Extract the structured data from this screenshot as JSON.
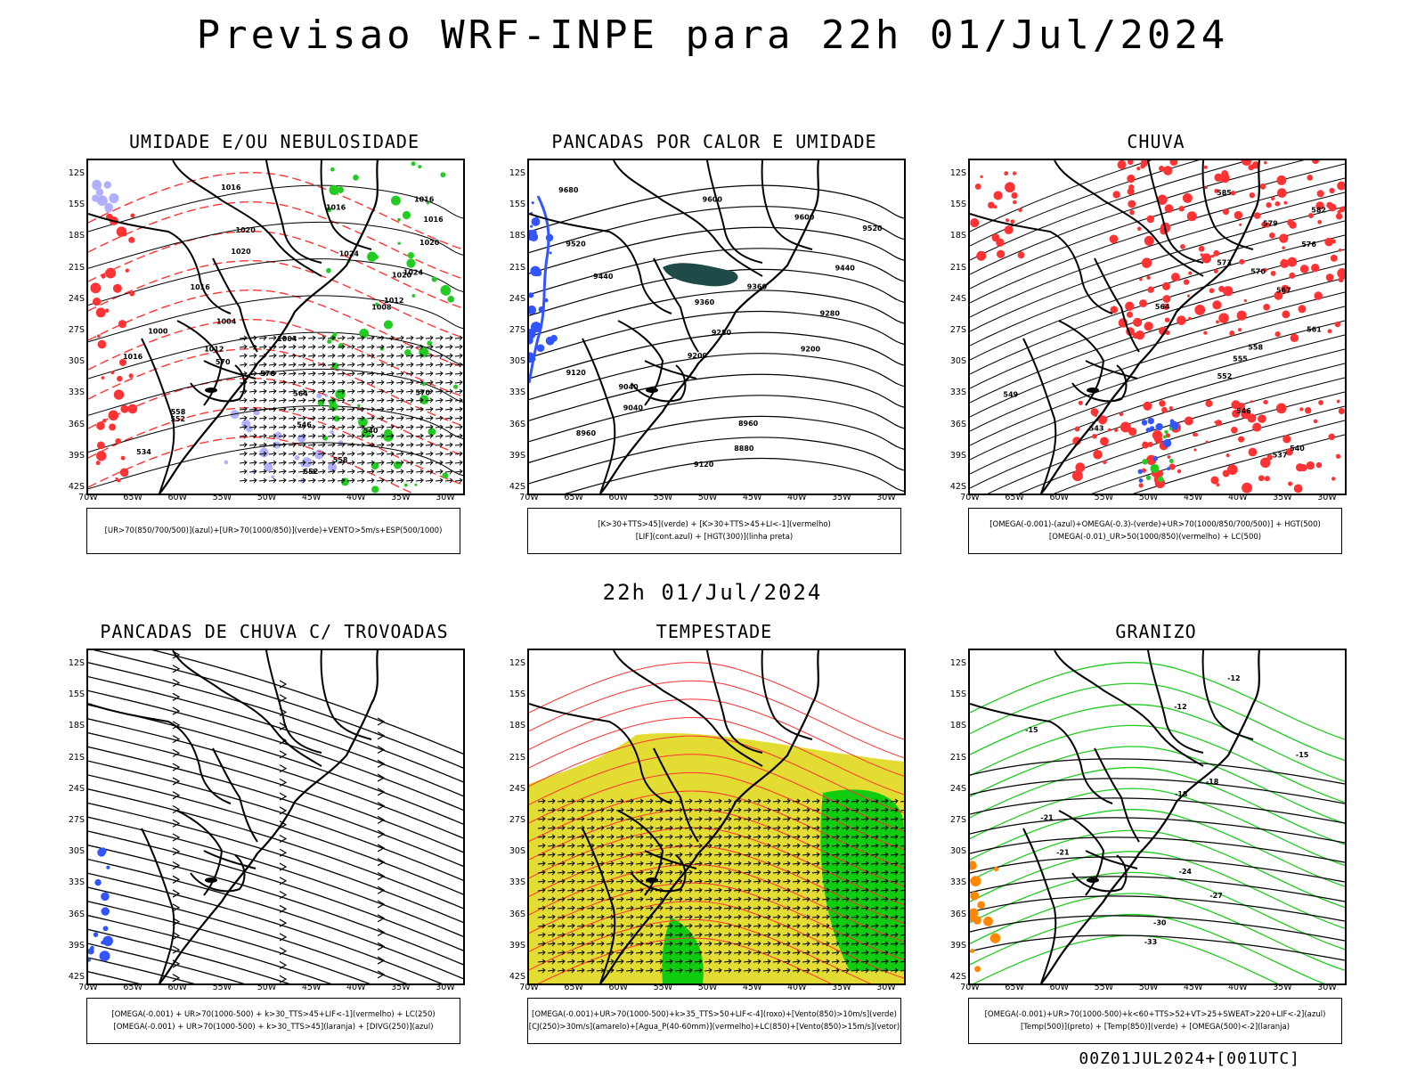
{
  "title": "Previsao WRF-INPE  para 22h 01/Jul/2024",
  "subtitle": "22h 01/Jul/2024",
  "footer": "00Z01JUL2024+[001UTC]",
  "axes": {
    "lat_labels": [
      "12S",
      "15S",
      "18S",
      "21S",
      "24S",
      "27S",
      "30S",
      "33S",
      "36S",
      "39S",
      "42S"
    ],
    "lon_labels": [
      "70W",
      "65W",
      "60W",
      "55W",
      "50W",
      "45W",
      "40W",
      "35W",
      "30W"
    ]
  },
  "panels": [
    {
      "title": "UMIDADE E/OU NEBULOSIDADE",
      "legend": [
        "[UR>70(850/700/500)](azul)+[UR>70(1000/850)](verde)+VENTO>5m/s+ESP(500/1000)"
      ],
      "contour_labels": [
        "1016",
        "1016",
        "1016",
        "1016",
        "1020",
        "1020",
        "1020",
        "1024",
        "1024",
        "1020",
        "1016",
        "1012",
        "1008",
        "1004",
        "1000",
        "1004",
        "1012",
        "1016",
        "570",
        "576",
        "570",
        "564",
        "558",
        "552",
        "546",
        "540",
        "534",
        "558",
        "552"
      ]
    },
    {
      "title": "PANCADAS POR CALOR E UMIDADE",
      "legend": [
        "[K>30+TTS>45](verde) + [K>30+TTS>45+LI<-1](vermelho)",
        "[LIF](cont.azul) + [HGT(300)](linha preta)"
      ],
      "contour_labels": [
        "9680",
        "9600",
        "9600",
        "9520",
        "9520",
        "9440",
        "9440",
        "9360",
        "9360",
        "9280",
        "9280",
        "9200",
        "9200",
        "9120",
        "9040",
        "9040",
        "8960",
        "8960",
        "8880",
        "9120"
      ]
    },
    {
      "title": "CHUVA",
      "legend": [
        "[OMEGA(-0.001)-(azul)+OMEGA(-0.3)-(verde)+UR>70(1000/850/700/500)] + HGT(500)",
        "[OMEGA(-0.01)_UR>50(1000/850)(vermelho) + LC(500)"
      ],
      "contour_labels": [
        "585",
        "582",
        "579",
        "576",
        "573",
        "570",
        "567",
        "564",
        "561",
        "558",
        "555",
        "552",
        "549",
        "546",
        "543",
        "540",
        "537"
      ]
    },
    {
      "title": "PANCADAS DE CHUVA C/ TROVOADAS",
      "legend": [
        "[OMEGA(-0.001) + UR>70(1000-500) + k>30_TTS>45+LIF<-1](vermelho) + LC(250)",
        "[OMEGA(-0.001) + UR>70(1000-500) + k>30_TTS>45](laranja) + [DIVG(250)](azul)"
      ],
      "contour_labels": []
    },
    {
      "title": "TEMPESTADE",
      "legend": [
        "[OMEGA(-0.001)+UR>70(1000-500)+k>35_TTS>50+LIF<-4](roxo)+[Vento(850)>10m/s](verde)",
        "[CJ(250)>30m/s](amarelo)+[Agua_P(40-60mm)](vermelho)+LC(850)+[Vento(850)>15m/s](vetor)"
      ],
      "contour_labels": []
    },
    {
      "title": "GRANIZO",
      "legend": [
        "[OMEGA(-0.001)+UR>70(1000-500)+k<60+TTS>52+VT>25+SWEAT>220+LIF<-2](azul)",
        "[Temp(500)](preto) + [Temp(850)](verde) + [OMEGA(500)<-2](laranja)"
      ],
      "contour_labels": [
        "-12",
        "-12",
        "-15",
        "-15",
        "-18",
        "-18",
        "-21",
        "-21",
        "-24",
        "-27",
        "-30",
        "-33"
      ]
    }
  ],
  "colors": {
    "black": "#000000",
    "red": "#ff3333",
    "green": "#22cc22",
    "blue": "#3355ff",
    "lilac": "#b0b0ff",
    "dark_teal": "#1e4a48",
    "yellow": "#e3dd33",
    "bright_green": "#10cc10",
    "orange": "#ff8800"
  }
}
